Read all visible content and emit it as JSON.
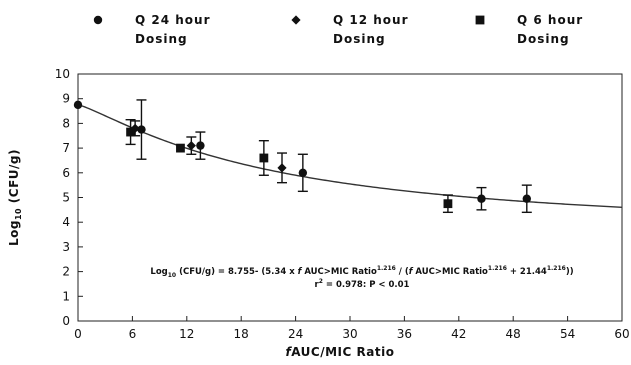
{
  "chart_data": {
    "type": "scatter",
    "xlabel_italic": "f",
    "xlabel_rest": "AUC/MIC Ratio",
    "ylabel_base": "Log",
    "ylabel_sub": "10",
    "ylabel_rest": " (CFU/g)",
    "xlim": [
      0,
      60
    ],
    "ylim": [
      0,
      10
    ],
    "x_ticks": [
      0,
      6,
      12,
      18,
      24,
      30,
      36,
      42,
      48,
      54,
      60
    ],
    "y_ticks": [
      0,
      1,
      2,
      3,
      4,
      5,
      6,
      7,
      8,
      9,
      10
    ],
    "legend": [
      {
        "name": "Q 24 hour",
        "name2": "Dosing",
        "marker": "circle"
      },
      {
        "name": "Q 12 hour",
        "name2": "Dosing",
        "marker": "diamond"
      },
      {
        "name": "Q 6 hour",
        "name2": "Dosing",
        "marker": "square"
      }
    ],
    "series": [
      {
        "name": "Q 24 hour Dosing",
        "marker": "circle",
        "points": [
          {
            "x": 0,
            "y": 8.75
          },
          {
            "x": 7,
            "y": 7.75,
            "err": 1.2
          },
          {
            "x": 13.5,
            "y": 7.1,
            "err": 0.55
          },
          {
            "x": 24.8,
            "y": 6.0,
            "err": 0.75
          },
          {
            "x": 44.5,
            "y": 4.95,
            "err": 0.45
          },
          {
            "x": 49.5,
            "y": 4.95,
            "err": 0.55
          }
        ]
      },
      {
        "name": "Q 12 hour Dosing",
        "marker": "diamond",
        "points": [
          {
            "x": 6.3,
            "y": 7.8,
            "err": 0.3
          },
          {
            "x": 12.5,
            "y": 7.1,
            "err": 0.35
          },
          {
            "x": 22.5,
            "y": 6.2,
            "err": 0.6
          }
        ]
      },
      {
        "name": "Q 6 hour Dosing",
        "marker": "square",
        "points": [
          {
            "x": 5.8,
            "y": 7.65,
            "err": 0.5
          },
          {
            "x": 11.3,
            "y": 7.0
          },
          {
            "x": 20.5,
            "y": 6.6,
            "err": 0.7
          },
          {
            "x": 40.8,
            "y": 4.75,
            "err": 0.35
          }
        ]
      }
    ],
    "fit": {
      "e0": 8.755,
      "emax": 5.34,
      "ec50": 21.44,
      "hill": 1.216
    },
    "equation": {
      "line1": [
        {
          "t": "Log",
          "sup": false,
          "sub": false
        },
        {
          "t": "10",
          "sub": true
        },
        {
          "t": " (CFU/g) = 8.755- (5.34 x "
        },
        {
          "t": "f",
          "italic": true
        },
        {
          "t": " AUC>MIC  Ratio"
        },
        {
          "t": "1.216",
          "sup": true
        },
        {
          "t": " / ("
        },
        {
          "t": "f",
          "italic": true
        },
        {
          "t": " AUC>MIC  Ratio"
        },
        {
          "t": "1.216",
          "sup": true
        },
        {
          "t": " + 21.44"
        },
        {
          "t": "1.216",
          "sup": true
        },
        {
          "t": "))"
        }
      ],
      "line2": [
        {
          "t": "r"
        },
        {
          "t": "2",
          "sup": true
        },
        {
          "t": " = 0.978:  P < 0.01"
        }
      ]
    }
  }
}
